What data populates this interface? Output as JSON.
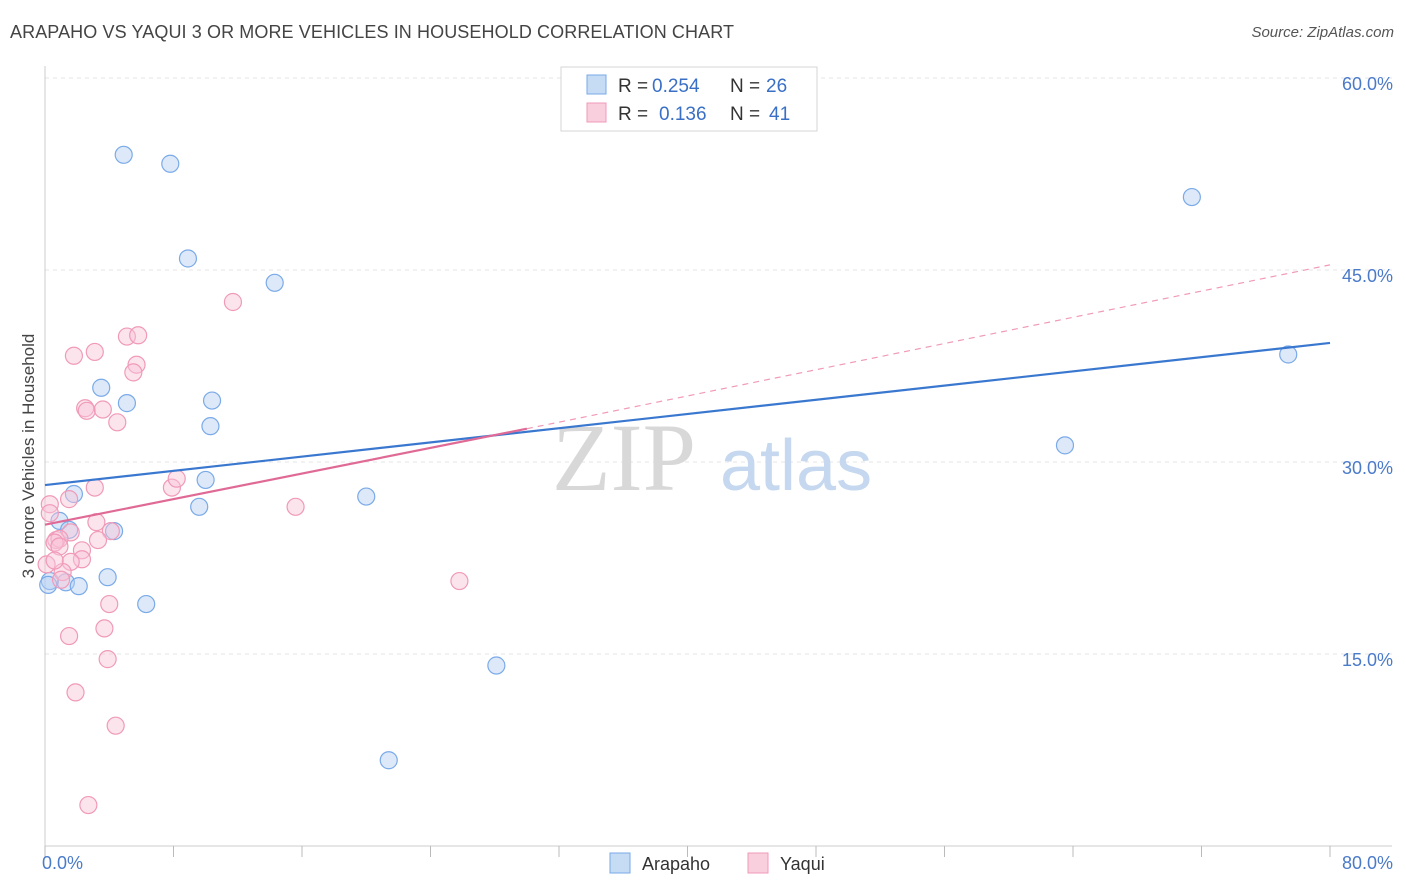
{
  "title": "ARAPAHO VS YAQUI 3 OR MORE VEHICLES IN HOUSEHOLD CORRELATION CHART",
  "source": "Source: ZipAtlas.com",
  "watermark": {
    "zip": "ZIP",
    "atlas": "atlas"
  },
  "legend_top": [
    {
      "r_label": "R =",
      "r_value": "0.254",
      "n_label": "N =",
      "n_value": "26"
    },
    {
      "r_label": "R =",
      "r_value": "0.136",
      "n_label": "N =",
      "n_value": "41"
    }
  ],
  "chart_data": {
    "type": "scatter",
    "title": "ARAPAHO VS YAQUI 3 OR MORE VEHICLES IN HOUSEHOLD CORRELATION CHART",
    "xlabel": "",
    "ylabel": "3 or more Vehicles in Household",
    "xlim": [
      0,
      80
    ],
    "ylim": [
      0,
      60
    ],
    "x_tick_labels": [
      "0.0%",
      "80.0%"
    ],
    "y_ticks": [
      15,
      30,
      45,
      60
    ],
    "y_tick_labels": [
      "15.0%",
      "30.0%",
      "45.0%",
      "60.0%"
    ],
    "grid": true,
    "colors": {
      "arapaho": "#7aaae8",
      "arapaho_line": "#3a78d0",
      "yaqui": "#f09ab8",
      "yaqui_line": "#e06a96"
    },
    "series": [
      {
        "name": "Arapaho",
        "points": [
          [
            4.9,
            54.0
          ],
          [
            7.8,
            53.3
          ],
          [
            8.9,
            45.9
          ],
          [
            14.3,
            44.0
          ],
          [
            71.4,
            50.7
          ],
          [
            77.4,
            38.4
          ],
          [
            3.5,
            35.8
          ],
          [
            5.1,
            34.6
          ],
          [
            10.4,
            34.8
          ],
          [
            10.3,
            32.8
          ],
          [
            10.0,
            28.6
          ],
          [
            9.6,
            26.5
          ],
          [
            20.0,
            27.3
          ],
          [
            63.5,
            31.3
          ],
          [
            1.8,
            27.5
          ],
          [
            0.9,
            25.4
          ],
          [
            1.5,
            24.7
          ],
          [
            4.3,
            24.6
          ],
          [
            3.9,
            21.0
          ],
          [
            1.3,
            20.6
          ],
          [
            0.3,
            20.7
          ],
          [
            2.1,
            20.3
          ],
          [
            6.3,
            18.9
          ],
          [
            28.1,
            14.1
          ],
          [
            21.4,
            6.7
          ],
          [
            0.2,
            20.4
          ]
        ],
        "trend": {
          "x": [
            0,
            80
          ],
          "y": [
            28.2,
            39.3
          ]
        }
      },
      {
        "name": "Yaqui",
        "points": [
          [
            11.7,
            42.5
          ],
          [
            5.1,
            39.8
          ],
          [
            5.8,
            39.9
          ],
          [
            3.1,
            38.6
          ],
          [
            1.8,
            38.3
          ],
          [
            5.7,
            37.6
          ],
          [
            5.5,
            37.0
          ],
          [
            2.5,
            34.2
          ],
          [
            2.6,
            34.0
          ],
          [
            3.6,
            34.1
          ],
          [
            4.5,
            33.1
          ],
          [
            7.9,
            28.0
          ],
          [
            8.2,
            28.7
          ],
          [
            3.1,
            28.0
          ],
          [
            1.5,
            27.1
          ],
          [
            15.6,
            26.5
          ],
          [
            0.3,
            26.7
          ],
          [
            0.3,
            26.0
          ],
          [
            3.2,
            25.3
          ],
          [
            4.1,
            24.6
          ],
          [
            1.6,
            24.5
          ],
          [
            0.7,
            23.9
          ],
          [
            0.9,
            24.0
          ],
          [
            3.3,
            23.9
          ],
          [
            0.6,
            23.7
          ],
          [
            2.3,
            23.1
          ],
          [
            0.9,
            23.4
          ],
          [
            2.3,
            22.4
          ],
          [
            1.6,
            22.2
          ],
          [
            0.1,
            22.0
          ],
          [
            1.1,
            21.4
          ],
          [
            1.0,
            20.8
          ],
          [
            25.8,
            20.7
          ],
          [
            4.0,
            18.9
          ],
          [
            3.7,
            17.0
          ],
          [
            1.5,
            16.4
          ],
          [
            3.9,
            14.6
          ],
          [
            1.9,
            12.0
          ],
          [
            4.4,
            9.4
          ],
          [
            2.7,
            3.2
          ],
          [
            0.6,
            22.3
          ]
        ],
        "trend": {
          "x": [
            0,
            30
          ],
          "y": [
            25.1,
            32.6
          ]
        },
        "trend_extension": {
          "x": [
            30,
            80
          ],
          "y": [
            32.6,
            45.4
          ]
        }
      }
    ]
  }
}
